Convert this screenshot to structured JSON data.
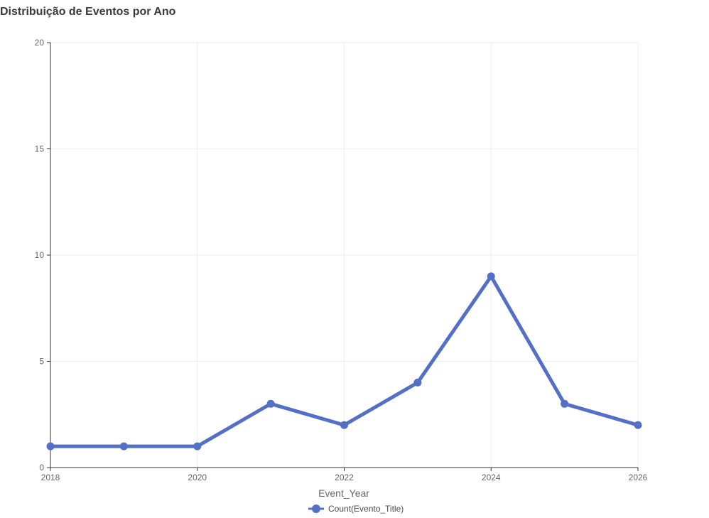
{
  "chart_data": {
    "type": "line",
    "title": "Distribuição de Eventos por Ano",
    "xlabel": "Event_Year",
    "ylabel": "",
    "x": [
      2018,
      2019,
      2020,
      2021,
      2022,
      2023,
      2024,
      2025,
      2026
    ],
    "series": [
      {
        "name": "Count(Evento_Title)",
        "values": [
          1,
          1,
          1,
          3,
          2,
          4,
          9,
          3,
          2
        ],
        "color": "#5470c6"
      }
    ],
    "xlim": [
      2018,
      2026
    ],
    "ylim": [
      0,
      20
    ],
    "x_ticks": [
      2018,
      2020,
      2022,
      2024,
      2026
    ],
    "y_ticks": [
      0,
      5,
      10,
      15,
      20
    ],
    "grid": true,
    "legend_position": "bottom-center",
    "colors": {
      "series": "#5470c6",
      "grid": "#eeeeee",
      "axis": "#333333",
      "text": "#666666"
    }
  }
}
